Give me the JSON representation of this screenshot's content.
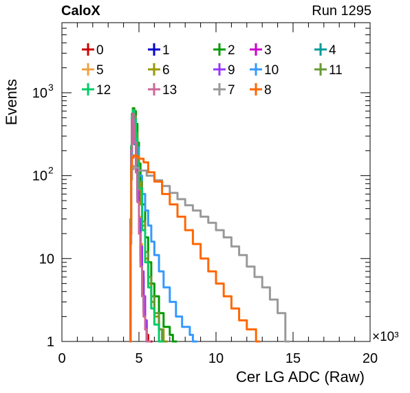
{
  "header": {
    "experiment": "CaloX",
    "run": "Run 1295"
  },
  "chart_data": {
    "type": "line",
    "title": "",
    "xlabel": "Cer LG ADC (Raw)",
    "ylabel": "Events",
    "x_multiplier_label": "×10³",
    "xlim": [
      0,
      20000
    ],
    "ylim": [
      1,
      7000
    ],
    "y_scale": "log",
    "x_ticks": [
      0,
      5,
      10,
      15,
      20
    ],
    "y_ticks": [
      {
        "value": 1,
        "label": "1"
      },
      {
        "value": 10,
        "label": "10"
      },
      {
        "value": 100,
        "label": "10",
        "exp": "2"
      },
      {
        "value": 1000,
        "label": "10",
        "exp": "3"
      }
    ],
    "grid": false,
    "legend_placement": "top",
    "series": [
      {
        "name": "0",
        "color": "#cc0000",
        "points": [
          [
            4400,
            1
          ],
          [
            4450,
            25
          ],
          [
            4500,
            200
          ],
          [
            4550,
            480
          ],
          [
            4600,
            560
          ],
          [
            4650,
            430
          ],
          [
            4700,
            260
          ],
          [
            4800,
            120
          ],
          [
            4900,
            55
          ],
          [
            5000,
            25
          ],
          [
            5100,
            11
          ],
          [
            5200,
            6
          ],
          [
            5300,
            3
          ],
          [
            5400,
            1.8
          ],
          [
            5500,
            1.2
          ],
          [
            5600,
            1
          ]
        ]
      },
      {
        "name": "1",
        "color": "#0000cc",
        "points": [
          [
            4400,
            1
          ],
          [
            4450,
            28
          ],
          [
            4500,
            220
          ],
          [
            4550,
            500
          ],
          [
            4600,
            580
          ],
          [
            4650,
            440
          ],
          [
            4700,
            270
          ],
          [
            4800,
            125
          ],
          [
            4900,
            58
          ],
          [
            5000,
            26
          ],
          [
            5100,
            12
          ],
          [
            5200,
            6
          ],
          [
            5300,
            3
          ],
          [
            5400,
            1.6
          ],
          [
            5500,
            1
          ]
        ]
      },
      {
        "name": "2",
        "color": "#009900",
        "points": [
          [
            4400,
            1
          ],
          [
            4450,
            30
          ],
          [
            4500,
            220
          ],
          [
            4550,
            560
          ],
          [
            4600,
            650
          ],
          [
            4700,
            600
          ],
          [
            4800,
            420
          ],
          [
            4900,
            250
          ],
          [
            5000,
            140
          ],
          [
            5100,
            80
          ],
          [
            5200,
            45
          ],
          [
            5400,
            18
          ],
          [
            5600,
            9
          ],
          [
            5800,
            5
          ],
          [
            6000,
            3.5
          ],
          [
            6300,
            2.2
          ],
          [
            6600,
            1.5
          ],
          [
            7000,
            1.2
          ],
          [
            7200,
            1
          ]
        ]
      },
      {
        "name": "3",
        "color": "#cc00cc",
        "points": [
          [
            4400,
            1
          ],
          [
            4450,
            25
          ],
          [
            4500,
            210
          ],
          [
            4550,
            480
          ],
          [
            4600,
            560
          ],
          [
            4650,
            420
          ],
          [
            4700,
            240
          ],
          [
            4800,
            110
          ],
          [
            4900,
            48
          ],
          [
            5000,
            20
          ],
          [
            5100,
            9
          ],
          [
            5200,
            4.5
          ],
          [
            5300,
            2.2
          ],
          [
            5400,
            1.4
          ],
          [
            5500,
            1
          ]
        ]
      },
      {
        "name": "4",
        "color": "#009999",
        "points": [
          [
            4400,
            1
          ],
          [
            4450,
            24
          ],
          [
            4500,
            200
          ],
          [
            4550,
            470
          ],
          [
            4600,
            540
          ],
          [
            4650,
            410
          ],
          [
            4700,
            240
          ],
          [
            4800,
            110
          ],
          [
            4900,
            50
          ],
          [
            5000,
            22
          ],
          [
            5100,
            10
          ],
          [
            5200,
            5
          ],
          [
            5300,
            2.5
          ],
          [
            5400,
            1.4
          ],
          [
            5500,
            1
          ]
        ]
      },
      {
        "name": "5",
        "color": "#f0a040",
        "points": [
          [
            4400,
            1
          ],
          [
            4450,
            26
          ],
          [
            4500,
            210
          ],
          [
            4550,
            500
          ],
          [
            4600,
            600
          ],
          [
            4650,
            480
          ],
          [
            4700,
            300
          ],
          [
            4800,
            150
          ],
          [
            4900,
            70
          ],
          [
            5000,
            32
          ],
          [
            5100,
            15
          ],
          [
            5200,
            7
          ],
          [
            5300,
            3.5
          ],
          [
            5400,
            1.8
          ],
          [
            5500,
            1
          ]
        ]
      },
      {
        "name": "6",
        "color": "#999900",
        "points": [
          [
            4400,
            1
          ],
          [
            4450,
            30
          ],
          [
            4500,
            230
          ],
          [
            4550,
            520
          ],
          [
            4600,
            620
          ],
          [
            4700,
            520
          ],
          [
            4800,
            320
          ],
          [
            4900,
            170
          ],
          [
            5000,
            85
          ],
          [
            5100,
            45
          ],
          [
            5200,
            25
          ],
          [
            5400,
            10
          ],
          [
            5600,
            5
          ],
          [
            5800,
            3
          ],
          [
            6000,
            2
          ],
          [
            6300,
            1.4
          ],
          [
            6600,
            1
          ]
        ]
      },
      {
        "name": "9",
        "color": "#9933ff",
        "points": [
          [
            4400,
            1
          ],
          [
            4450,
            26
          ],
          [
            4500,
            210
          ],
          [
            4550,
            490
          ],
          [
            4600,
            580
          ],
          [
            4650,
            460
          ],
          [
            4700,
            290
          ],
          [
            4800,
            140
          ],
          [
            4900,
            65
          ],
          [
            5000,
            30
          ],
          [
            5100,
            14
          ],
          [
            5200,
            7
          ],
          [
            5300,
            3.5
          ],
          [
            5400,
            1.8
          ],
          [
            5500,
            1
          ]
        ]
      },
      {
        "name": "10",
        "color": "#3399ff",
        "points": [
          [
            4400,
            1
          ],
          [
            4450,
            22
          ],
          [
            4500,
            180
          ],
          [
            4550,
            420
          ],
          [
            4600,
            500
          ],
          [
            4700,
            380
          ],
          [
            4800,
            220
          ],
          [
            5000,
            100
          ],
          [
            5200,
            60
          ],
          [
            5400,
            38
          ],
          [
            5600,
            25
          ],
          [
            5800,
            16
          ],
          [
            6000,
            11
          ],
          [
            6300,
            7
          ],
          [
            6600,
            4.5
          ],
          [
            7000,
            3
          ],
          [
            7400,
            2
          ],
          [
            7800,
            1.5
          ],
          [
            8300,
            1.2
          ],
          [
            8500,
            1
          ]
        ]
      },
      {
        "name": "11",
        "color": "#669933",
        "points": [
          [
            4400,
            1
          ],
          [
            4450,
            28
          ],
          [
            4500,
            220
          ],
          [
            4550,
            520
          ],
          [
            4600,
            620
          ],
          [
            4700,
            520
          ],
          [
            4800,
            330
          ],
          [
            4900,
            170
          ],
          [
            5000,
            85
          ],
          [
            5200,
            28
          ],
          [
            5400,
            12
          ],
          [
            5600,
            6
          ],
          [
            5800,
            3.5
          ],
          [
            6000,
            2.2
          ],
          [
            6300,
            1.4
          ],
          [
            6500,
            1
          ]
        ]
      },
      {
        "name": "12",
        "color": "#00cc66",
        "points": [
          [
            4400,
            1
          ],
          [
            4450,
            30
          ],
          [
            4500,
            230
          ],
          [
            4550,
            520
          ],
          [
            4600,
            610
          ],
          [
            4700,
            480
          ],
          [
            4800,
            280
          ],
          [
            4900,
            140
          ],
          [
            5000,
            70
          ],
          [
            5200,
            22
          ],
          [
            5400,
            9
          ],
          [
            5600,
            4.5
          ],
          [
            5800,
            2.5
          ],
          [
            6000,
            1.6
          ],
          [
            6300,
            1
          ]
        ]
      },
      {
        "name": "13",
        "color": "#cc6699",
        "points": [
          [
            4400,
            1
          ],
          [
            4450,
            24
          ],
          [
            4500,
            200
          ],
          [
            4550,
            470
          ],
          [
            4600,
            560
          ],
          [
            4650,
            420
          ],
          [
            4700,
            250
          ],
          [
            4800,
            110
          ],
          [
            4900,
            48
          ],
          [
            5000,
            20
          ],
          [
            5100,
            8
          ],
          [
            5200,
            3.5
          ],
          [
            5300,
            2
          ],
          [
            5400,
            1.4
          ],
          [
            5500,
            1
          ]
        ]
      },
      {
        "name": "7",
        "color": "#999999",
        "points": [
          [
            4400,
            1
          ],
          [
            4450,
            15
          ],
          [
            4500,
            90
          ],
          [
            4550,
            120
          ],
          [
            4650,
            130
          ],
          [
            4800,
            125
          ],
          [
            5000,
            115
          ],
          [
            5500,
            100
          ],
          [
            6000,
            88
          ],
          [
            6500,
            75
          ],
          [
            7000,
            62
          ],
          [
            7500,
            52
          ],
          [
            8000,
            44
          ],
          [
            8500,
            38
          ],
          [
            9000,
            32
          ],
          [
            9500,
            27
          ],
          [
            10000,
            22
          ],
          [
            10500,
            18
          ],
          [
            11000,
            14
          ],
          [
            11500,
            11
          ],
          [
            12000,
            8
          ],
          [
            12500,
            6
          ],
          [
            13000,
            4.5
          ],
          [
            13500,
            3.2
          ],
          [
            14000,
            2.2
          ],
          [
            14500,
            1
          ]
        ]
      },
      {
        "name": "8",
        "color": "#ff6600",
        "points": [
          [
            4400,
            1
          ],
          [
            4450,
            20
          ],
          [
            4500,
            130
          ],
          [
            4550,
            165
          ],
          [
            4650,
            175
          ],
          [
            4800,
            170
          ],
          [
            5000,
            160
          ],
          [
            5300,
            145
          ],
          [
            5600,
            110
          ],
          [
            6000,
            85
          ],
          [
            6500,
            60
          ],
          [
            7000,
            45
          ],
          [
            7500,
            32
          ],
          [
            8000,
            22
          ],
          [
            8500,
            15
          ],
          [
            9000,
            10
          ],
          [
            9500,
            7
          ],
          [
            10000,
            5
          ],
          [
            10500,
            3.5
          ],
          [
            11000,
            2.5
          ],
          [
            11500,
            1.8
          ],
          [
            12000,
            1.4
          ],
          [
            12600,
            1
          ]
        ]
      }
    ]
  }
}
